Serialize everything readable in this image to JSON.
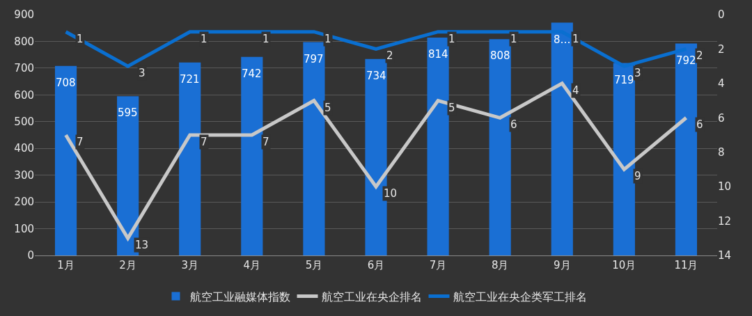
{
  "chart_data": {
    "type": "bar",
    "categories": [
      "1月",
      "2月",
      "3月",
      "4月",
      "5月",
      "6月",
      "7月",
      "8月",
      "9月",
      "10月",
      "11月"
    ],
    "series": [
      {
        "name": "航空工业融媒体指数",
        "color": "#1a6fd4",
        "values": [
          708,
          595,
          721,
          742,
          797,
          734,
          814,
          808,
          870,
          719,
          792
        ],
        "value_labels": [
          "708",
          "595",
          "721",
          "742",
          "797",
          "734",
          "814",
          "808",
          "8…",
          "719",
          "792"
        ]
      },
      {
        "name": "航空工业在央企排名",
        "type": "line",
        "axis": "y2",
        "color": "#c8c8c8",
        "values": [
          7,
          13,
          7,
          7,
          5,
          10,
          5,
          6,
          4,
          9,
          6
        ],
        "data_labels": true
      },
      {
        "name": "航空工业在央企类军工排名",
        "type": "line",
        "axis": "y2",
        "color": "#0a6fd0",
        "values": [
          1,
          3,
          1,
          1,
          1,
          2,
          1,
          1,
          1,
          3,
          2
        ],
        "data_labels": true
      }
    ],
    "ylim": [
      0,
      900
    ],
    "yticks": [
      0,
      100,
      200,
      300,
      400,
      500,
      600,
      700,
      800,
      900
    ],
    "y2lim": [
      14,
      0
    ],
    "y2ticks": [
      0,
      2,
      4,
      6,
      8,
      10,
      12,
      14
    ],
    "grid": "y",
    "legend": "bottom",
    "marker": "none",
    "line_style": "solid"
  }
}
